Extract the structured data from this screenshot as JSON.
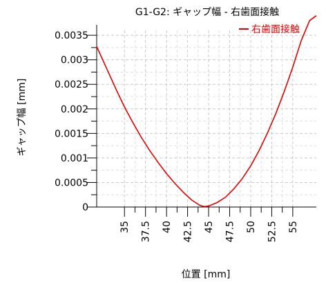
{
  "chart_data": {
    "type": "line",
    "title": "G1-G2: ギャップ幅 - 右歯面接触",
    "xlabel": "位置 [mm]",
    "ylabel": "ギャップ幅 [mm]",
    "xlim": [
      31.7,
      57.8
    ],
    "ylim": [
      0,
      0.0036
    ],
    "x_ticks": [
      35,
      37.5,
      40,
      42.5,
      45,
      47.5,
      50,
      52.5,
      55
    ],
    "x_tick_labels": [
      "35",
      "37.5",
      "40",
      "42.5",
      "45",
      "47.5",
      "50",
      "52.5",
      "55"
    ],
    "y_ticks": [
      0,
      0.0005,
      0.001,
      0.0015,
      0.002,
      0.0025,
      0.003,
      0.0035
    ],
    "y_tick_labels": [
      "0",
      "0.0005",
      "0.001",
      "0.0015",
      "0.002",
      "0.0025",
      "0.003",
      "0.0035"
    ],
    "grid": true,
    "legend_position": "top-right",
    "series": [
      {
        "name": "右歯面接触",
        "color": "#e00000",
        "x": [
          31.7,
          33,
          34,
          35,
          36,
          37,
          38,
          39,
          40,
          41,
          42,
          43,
          44,
          44.5,
          45,
          46,
          47,
          48,
          49,
          50,
          51,
          52,
          53,
          54,
          55,
          56,
          57,
          57.8
        ],
        "y": [
          0.00327,
          0.00278,
          0.0024,
          0.00204,
          0.00172,
          0.00142,
          0.00115,
          0.00091,
          0.00068,
          0.00048,
          0.0003,
          0.00014,
          3e-05,
          1e-05,
          2e-05,
          9e-05,
          0.0002,
          0.00037,
          0.00058,
          0.00084,
          0.00115,
          0.00151,
          0.00191,
          0.00236,
          0.00285,
          0.00339,
          0.0038,
          0.0039
        ]
      }
    ]
  }
}
